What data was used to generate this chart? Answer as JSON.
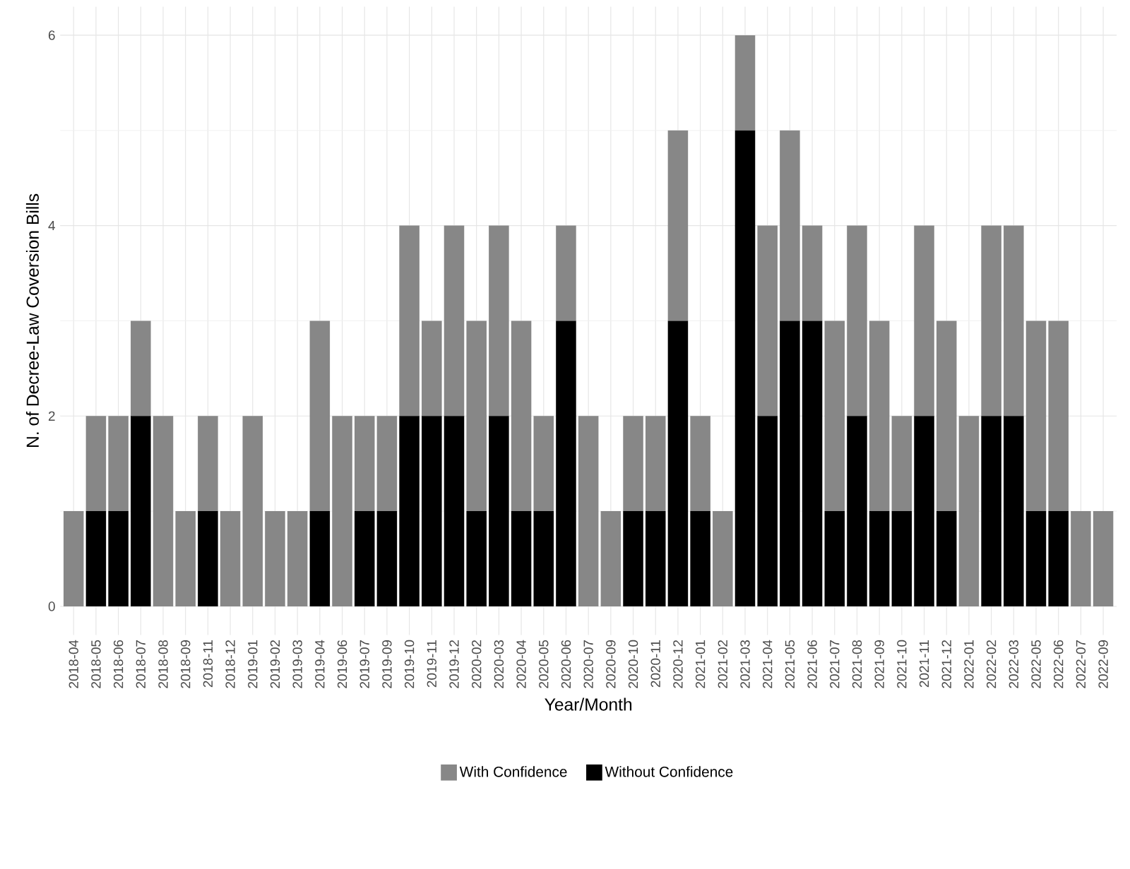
{
  "chart_data": {
    "type": "bar",
    "stacked": true,
    "xlabel": "Year/Month",
    "ylabel": "N. of Decree-Law Coversion Bills",
    "categories": [
      "2018-04",
      "2018-05",
      "2018-06",
      "2018-07",
      "2018-08",
      "2018-09",
      "2018-11",
      "2018-12",
      "2019-01",
      "2019-02",
      "2019-03",
      "2019-04",
      "2019-06",
      "2019-07",
      "2019-09",
      "2019-10",
      "2019-11",
      "2019-12",
      "2020-02",
      "2020-03",
      "2020-04",
      "2020-05",
      "2020-06",
      "2020-07",
      "2020-09",
      "2020-10",
      "2020-11",
      "2020-12",
      "2021-01",
      "2021-02",
      "2021-03",
      "2021-04",
      "2021-05",
      "2021-06",
      "2021-07",
      "2021-08",
      "2021-09",
      "2021-10",
      "2021-11",
      "2021-12",
      "2022-01",
      "2022-02",
      "2022-03",
      "2022-05",
      "2022-06",
      "2022-07",
      "2022-09"
    ],
    "series": [
      {
        "name": "Without Confidence",
        "color": "#000000",
        "values": [
          0,
          1,
          1,
          2,
          0,
          0,
          1,
          0,
          0,
          0,
          0,
          1,
          0,
          1,
          1,
          2,
          2,
          2,
          1,
          2,
          1,
          1,
          3,
          0,
          0,
          1,
          1,
          3,
          1,
          0,
          5,
          2,
          3,
          3,
          1,
          2,
          1,
          1,
          2,
          1,
          0,
          2,
          2,
          1,
          1,
          0,
          0
        ]
      },
      {
        "name": "With Confidence",
        "color": "#878787",
        "values": [
          1,
          1,
          1,
          1,
          2,
          1,
          1,
          1,
          2,
          1,
          1,
          2,
          2,
          1,
          1,
          2,
          1,
          2,
          2,
          2,
          2,
          1,
          1,
          2,
          1,
          1,
          1,
          2,
          1,
          1,
          1,
          2,
          2,
          1,
          2,
          2,
          2,
          1,
          2,
          2,
          2,
          2,
          2,
          2,
          2,
          1,
          1
        ]
      }
    ],
    "ylim": [
      -0.3,
      6.3
    ],
    "yticks": [
      0,
      2,
      4,
      6
    ],
    "grid": true,
    "legend": "bottom"
  }
}
